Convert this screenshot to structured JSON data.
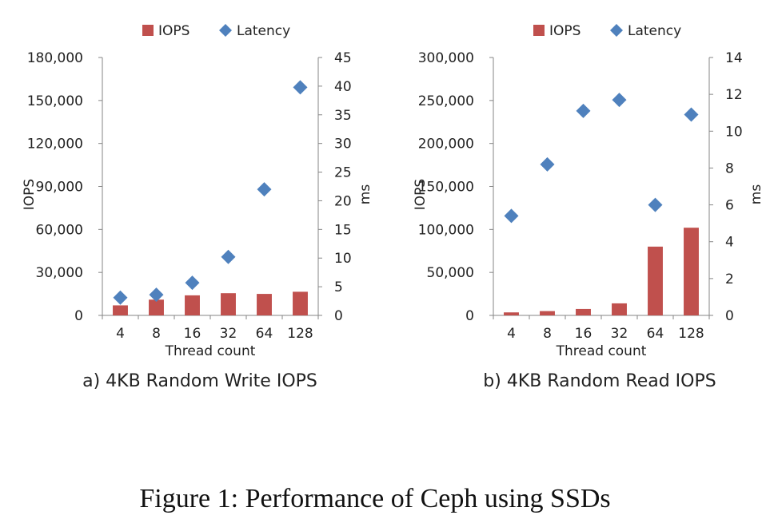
{
  "caption": "Figure 1: Performance of Ceph using SSDs",
  "colors": {
    "iops": "#C0504D",
    "latency": "#4F81BD",
    "axis": "#868686"
  },
  "chart_data": [
    {
      "type": "bar",
      "title": "a) 4KB Random Write IOPS",
      "categories": [
        "4",
        "8",
        "16",
        "32",
        "64",
        "128"
      ],
      "xlabel": "Thread count",
      "ylabel": "IOPS",
      "y2label": "ms",
      "ylim": [
        0,
        180000
      ],
      "yticks": [
        "0",
        "30,000",
        "60,000",
        "90,000",
        "120,000",
        "150,000",
        "180,000"
      ],
      "y2lim": [
        0,
        45
      ],
      "y2ticks": [
        "0",
        "5",
        "10",
        "15",
        "20",
        "25",
        "30",
        "35",
        "40",
        "45"
      ],
      "legend": [
        "IOPS",
        "Latency"
      ],
      "legend_position": "top",
      "series": [
        {
          "name": "IOPS",
          "type": "bar",
          "axis": "left",
          "values": [
            7000,
            11000,
            14000,
            15500,
            15000,
            16500
          ]
        },
        {
          "name": "Latency",
          "type": "scatter",
          "axis": "right",
          "values": [
            3.1,
            3.6,
            5.7,
            10.2,
            22.0,
            39.8
          ]
        }
      ]
    },
    {
      "type": "bar",
      "title": "b) 4KB Random Read IOPS",
      "categories": [
        "4",
        "8",
        "16",
        "32",
        "64",
        "128"
      ],
      "xlabel": "Thread count",
      "ylabel": "IOPS",
      "y2label": "ms",
      "ylim": [
        0,
        300000
      ],
      "yticks": [
        "0",
        "50,000",
        "100,000",
        "150,000",
        "200,000",
        "250,000",
        "300,000"
      ],
      "y2lim": [
        0,
        14
      ],
      "y2ticks": [
        "0",
        "2",
        "4",
        "6",
        "8",
        "10",
        "12",
        "14"
      ],
      "legend": [
        "IOPS",
        "Latency"
      ],
      "legend_position": "top",
      "series": [
        {
          "name": "IOPS",
          "type": "bar",
          "axis": "left",
          "values": [
            3500,
            5000,
            7500,
            14000,
            80000,
            102000
          ]
        },
        {
          "name": "Latency",
          "type": "scatter",
          "axis": "right",
          "values": [
            5.4,
            8.2,
            11.1,
            11.7,
            6.0,
            10.9
          ]
        }
      ]
    }
  ]
}
